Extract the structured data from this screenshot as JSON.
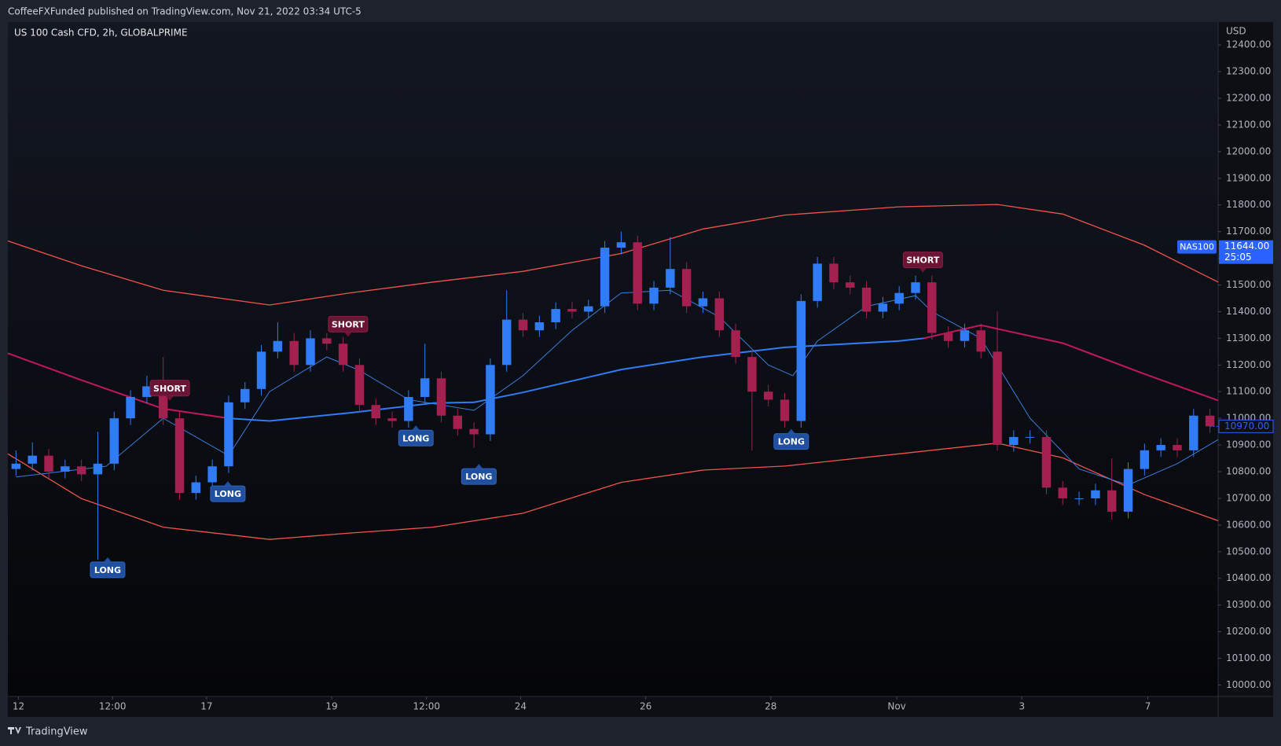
{
  "header": "CoffeeFXFunded published on TradingView.com, Nov 21, 2022 03:34 UTC-5",
  "footer": "TradingView",
  "chart_data": {
    "type": "candlestick",
    "title": "US 100 Cash CFD, 2h, GLOBALPRIME",
    "y_axis_label": "USD",
    "bull_color": "#2f7cf6",
    "bear_color": "#a3204f",
    "x": [
      0.5,
      1.5,
      2.5,
      3.5,
      4.5,
      5.5,
      6.5,
      7.5,
      8.5,
      9.5,
      10.5,
      11.5,
      12.5,
      13.5,
      14.5,
      15.5,
      16.5,
      17.5,
      18.5,
      19.5,
      20.5,
      21.5,
      22.5,
      23.5,
      24.5,
      25.5,
      26.5,
      27.5,
      28.5,
      29.5,
      30.5,
      31.5,
      32.5,
      33.5,
      34.5,
      35.5,
      36.5,
      37.5,
      38.5,
      39.5,
      40.5,
      41.5,
      42.5,
      43.5,
      44.5,
      45.5,
      46.5,
      47.5,
      48.5,
      49.5,
      50.5,
      51.5,
      52.5,
      53.5,
      54.5,
      55.5,
      56.5,
      57.5,
      58.5,
      59.5,
      60.5,
      61.5,
      62.5,
      63.5,
      64.5,
      65.5,
      66.5,
      67.5,
      68.5,
      69.5,
      70.5,
      71.5,
      72.5,
      73.5
    ],
    "open": [
      10810,
      10830,
      10860,
      10800,
      10820,
      10790,
      10830,
      11000,
      11080,
      11120,
      11000,
      10720,
      10760,
      10820,
      11060,
      11110,
      11250,
      11290,
      11200,
      11300,
      11280,
      11200,
      11050,
      11000,
      10990,
      11080,
      11150,
      11010,
      10960,
      10940,
      11200,
      11370,
      11330,
      11360,
      11410,
      11400,
      11420,
      11640,
      11660,
      11430,
      11490,
      11560,
      11420,
      11450,
      11330,
      11230,
      11100,
      11070,
      10990,
      11440,
      11580,
      11510,
      11490,
      11400,
      11430,
      11470,
      11510,
      11320,
      11290,
      11330,
      11250,
      10900,
      10930,
      10930,
      10740,
      10700,
      10700,
      10730,
      10650,
      10810,
      10880,
      10900,
      10880,
      11010
    ],
    "high": [
      10880,
      10910,
      10885,
      10845,
      10845,
      10950,
      11025,
      11105,
      11160,
      11230,
      11025,
      10785,
      10845,
      11085,
      11135,
      11275,
      11360,
      11320,
      11330,
      11320,
      11305,
      11225,
      11075,
      11025,
      11105,
      11280,
      11175,
      11035,
      10985,
      11225,
      11480,
      11395,
      11385,
      11435,
      11435,
      11445,
      11665,
      11700,
      11685,
      11515,
      11680,
      11585,
      11475,
      11475,
      11355,
      11255,
      11125,
      11095,
      11465,
      11605,
      11605,
      11535,
      11515,
      11455,
      11495,
      11535,
      11535,
      11345,
      11355,
      11355,
      11400,
      10955,
      10955,
      10955,
      10765,
      10725,
      10755,
      10850,
      10835,
      10905,
      10925,
      10925,
      11035,
      11035
    ],
    "low": [
      10785,
      10805,
      10775,
      10775,
      10765,
      10470,
      10805,
      10975,
      11055,
      10975,
      10695,
      10695,
      10735,
      10795,
      11035,
      11085,
      11225,
      11175,
      11175,
      11255,
      11175,
      11025,
      10975,
      10965,
      10965,
      11055,
      10985,
      10935,
      10890,
      10915,
      11175,
      11305,
      11305,
      11335,
      11375,
      11375,
      11395,
      11615,
      11405,
      11405,
      11465,
      11395,
      11395,
      11305,
      11205,
      10880,
      11045,
      10965,
      10965,
      11415,
      11485,
      11465,
      11375,
      11375,
      11405,
      11445,
      11295,
      11265,
      11265,
      11225,
      10880,
      10875,
      10905,
      10715,
      10675,
      10675,
      10675,
      10620,
      10625,
      10785,
      10855,
      10855,
      10855,
      10945
    ],
    "close": [
      10830,
      10860,
      10800,
      10820,
      10790,
      10830,
      11000,
      11080,
      11120,
      11000,
      10720,
      10760,
      10820,
      11060,
      11110,
      11250,
      11290,
      11200,
      11300,
      11280,
      11200,
      11050,
      11000,
      10990,
      11080,
      11150,
      11010,
      10960,
      10940,
      11200,
      11370,
      11330,
      11360,
      11410,
      11400,
      11420,
      11640,
      11660,
      11430,
      11490,
      11560,
      11420,
      11450,
      11330,
      11230,
      11100,
      11070,
      10990,
      11440,
      11580,
      11510,
      11490,
      11400,
      11430,
      11470,
      11510,
      11320,
      11290,
      11330,
      11250,
      10900,
      10930,
      10930,
      10740,
      10700,
      10700,
      10730,
      10650,
      10810,
      10880,
      10900,
      10880,
      11010,
      10970
    ],
    "lines": [
      {
        "color": "#f0544c",
        "width": 1.3,
        "x": [
          0,
          4.5,
          9.5,
          16,
          21,
          26,
          31.5,
          37.5,
          42.5,
          47.5,
          54.5,
          60.5,
          64.5,
          69.5,
          74
        ],
        "values": [
          11665,
          11572,
          11480,
          11425,
          11471,
          11511,
          11551,
          11618,
          11710,
          11762,
          11793,
          11802,
          11766,
          11649,
          11511
        ]
      },
      {
        "color": "#f0544c",
        "width": 1.3,
        "x": [
          0,
          4.5,
          9.5,
          16,
          21,
          26,
          31.5,
          37.5,
          42.5,
          47.5,
          54.5,
          60.5,
          64.5,
          69.5,
          74
        ],
        "values": [
          10867,
          10699,
          10592,
          10546,
          10570,
          10592,
          10644,
          10760,
          10806,
          10821,
          10867,
          10907,
          10852,
          10714,
          10616
        ]
      },
      {
        "color": "#c2185b",
        "width": 2,
        "x": [
          0,
          4.5,
          9.5,
          13.5,
          16,
          21,
          26,
          28.5,
          31.5,
          37.5,
          42.5,
          47.5,
          54.5,
          56,
          59.5,
          64.5,
          69.5,
          74
        ],
        "values": [
          11244,
          11143,
          11036,
          11000,
          null,
          null,
          null,
          null,
          null,
          null,
          null,
          null,
          null,
          11300,
          11349,
          11282,
          11166,
          11067
        ]
      },
      {
        "color": "#2f7cf6",
        "width": 2,
        "x": [
          0,
          4.5,
          9.5,
          13.5,
          16,
          21,
          26,
          28.5,
          31.5,
          37.5,
          42.5,
          47.5,
          54.5,
          56,
          59.5,
          64.5,
          69.5,
          74
        ],
        "values": [
          null,
          null,
          null,
          11000,
          10990,
          11021,
          11057,
          11060,
          11097,
          11183,
          11230,
          11266,
          11290,
          11300,
          null,
          null,
          null,
          null
        ]
      },
      {
        "color": "#3b7ddd",
        "width": 1,
        "x": [
          0.5,
          6,
          9.5,
          13.5,
          16,
          19.5,
          21.5,
          24.5,
          28.5,
          31.5,
          34.5,
          37.5,
          40.5,
          43.5,
          46.5,
          48,
          49.5,
          52.5,
          55.5,
          56.5,
          59.5,
          62.5,
          65.5,
          68.5,
          71.5,
          74
        ],
        "values": [
          10780,
          10820,
          11000,
          10860,
          11100,
          11230,
          11180,
          11070,
          11030,
          11160,
          11330,
          11470,
          11480,
          11380,
          11200,
          11160,
          11290,
          11420,
          11460,
          11400,
          11300,
          11000,
          10810,
          10750,
          10830,
          10920
        ]
      }
    ],
    "signals": [
      {
        "label": "LONG",
        "x": 6.1,
        "price": 10432,
        "color": "#1f4f9e"
      },
      {
        "label": "SHORT",
        "x": 9.9,
        "price": 11113,
        "color": "#6b1534"
      },
      {
        "label": "LONG",
        "x": 13.45,
        "price": 10717,
        "color": "#1f4f9e"
      },
      {
        "label": "SHORT",
        "x": 20.8,
        "price": 11353,
        "color": "#6b1534"
      },
      {
        "label": "LONG",
        "x": 24.95,
        "price": 10926,
        "color": "#1f4f9e"
      },
      {
        "label": "LONG",
        "x": 28.8,
        "price": 10782,
        "color": "#1f4f9e"
      },
      {
        "label": "LONG",
        "x": 47.9,
        "price": 10913,
        "color": "#1f4f9e"
      },
      {
        "label": "SHORT",
        "x": 55.95,
        "price": 11594,
        "color": "#6b1534"
      }
    ],
    "price_badges": [
      {
        "name": "NAS100",
        "value": 11644,
        "label": "11644.00",
        "countdown": "25:05",
        "color": "#2962ff"
      },
      {
        "value": 10970,
        "label": "10970.00",
        "color": "#2962ff"
      }
    ],
    "xlim": [
      0,
      74
    ],
    "xticks": [
      {
        "value": 0.65,
        "label": "12"
      },
      {
        "value": 6.4,
        "label": "12:00"
      },
      {
        "value": 12.15,
        "label": "17"
      },
      {
        "value": 19.8,
        "label": "19"
      },
      {
        "value": 25.6,
        "label": "12:00"
      },
      {
        "value": 31.35,
        "label": "24"
      },
      {
        "value": 39,
        "label": "26"
      },
      {
        "value": 46.65,
        "label": "28"
      },
      {
        "value": 54.35,
        "label": "Nov"
      },
      {
        "value": 62,
        "label": "3"
      },
      {
        "value": 69.7,
        "label": "7"
      }
    ],
    "ylim": [
      9957,
      12486
    ],
    "yticks": [
      {
        "value": 10000,
        "label": "10000.00"
      },
      {
        "value": 10100,
        "label": "10100.00"
      },
      {
        "value": 10200,
        "label": "10200.00"
      },
      {
        "value": 10300,
        "label": "10300.00"
      },
      {
        "value": 10400,
        "label": "10400.00"
      },
      {
        "value": 10500,
        "label": "10500.00"
      },
      {
        "value": 10600,
        "label": "10600.00"
      },
      {
        "value": 10700,
        "label": "10700.00"
      },
      {
        "value": 10800,
        "label": "10800.00"
      },
      {
        "value": 10900,
        "label": "10900.00"
      },
      {
        "value": 11000,
        "label": "11000.00"
      },
      {
        "value": 11100,
        "label": "11100.00"
      },
      {
        "value": 11200,
        "label": "11200.00"
      },
      {
        "value": 11300,
        "label": "11300.00"
      },
      {
        "value": 11400,
        "label": "11400.00"
      },
      {
        "value": 11500,
        "label": "11500.00"
      },
      {
        "value": 11600,
        "label": "11600.00"
      },
      {
        "value": 11700,
        "label": "11700.00"
      },
      {
        "value": 11800,
        "label": "11800.00"
      },
      {
        "value": 11900,
        "label": "11900.00"
      },
      {
        "value": 12000,
        "label": "12000.00"
      },
      {
        "value": 12100,
        "label": "12100.00"
      },
      {
        "value": 12200,
        "label": "12200.00"
      },
      {
        "value": 12300,
        "label": "12300.00"
      },
      {
        "value": 12400,
        "label": "12400.00"
      }
    ]
  }
}
